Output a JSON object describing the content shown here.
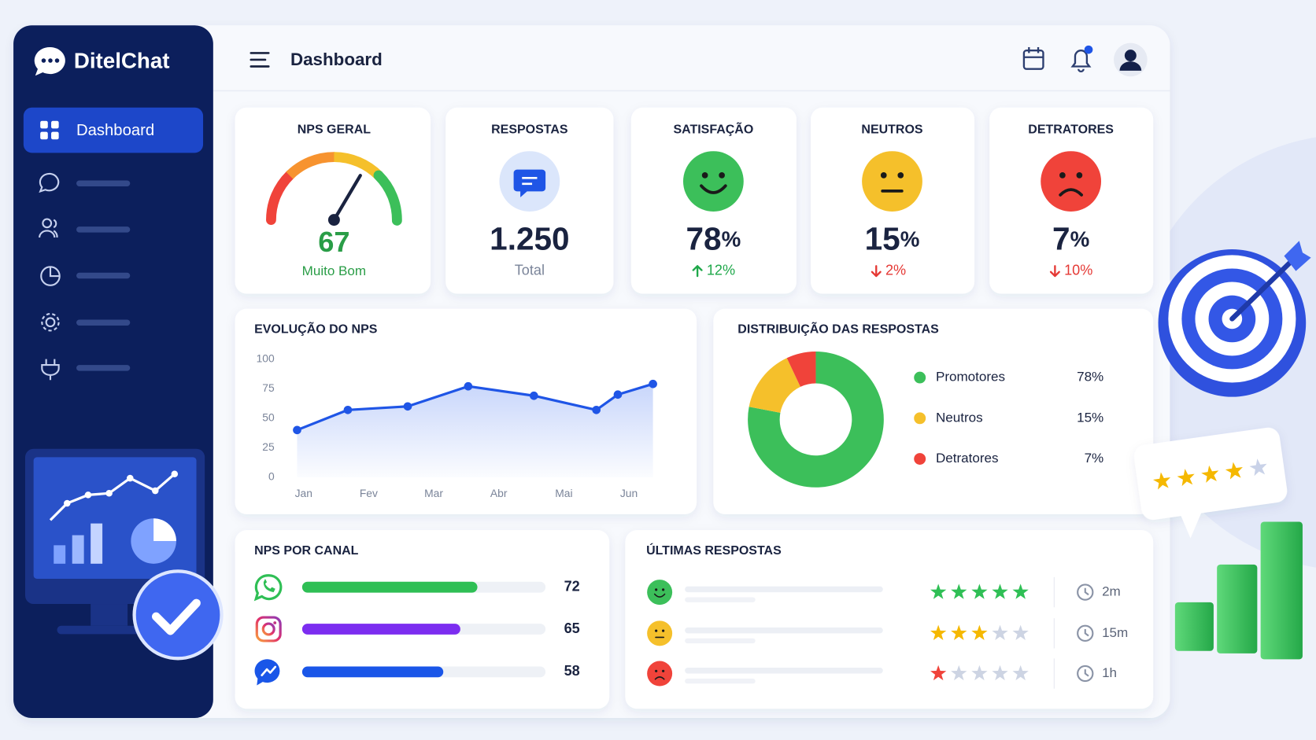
{
  "sidebar": {
    "brand": "DitelChat",
    "active_item": "Dashboard"
  },
  "header": {
    "title": "Dashboard"
  },
  "kpis": [
    {
      "title": "NPS GERAL",
      "value": 67,
      "caption": "Muito Bom",
      "lim": [
        0,
        100
      ]
    },
    {
      "title": "RESPOSTAS",
      "value": "1.250",
      "caption": "Total"
    },
    {
      "title": "SATISFAÇÃO",
      "value": "78",
      "unit": "%",
      "trend": "12%",
      "direction": "up",
      "icon": "happy"
    },
    {
      "title": "NEUTROS",
      "value": "15",
      "unit": "%",
      "trend": "2%",
      "direction": "down",
      "icon": "neutral"
    },
    {
      "title": "DETRATORES",
      "value": "7",
      "unit": "%",
      "trend": "10%",
      "direction": "down",
      "icon": "sad"
    }
  ],
  "chart_data": [
    {
      "type": "line",
      "title": "EVOLUÇÃO DO NPS",
      "x": [
        -0.1,
        0.68,
        1.6,
        2.53,
        3.54,
        4.5,
        4.83,
        5.37
      ],
      "series": [
        {
          "color": "#1f55e6",
          "values": [
            40,
            57,
            60,
            77,
            69,
            57,
            70,
            79
          ]
        }
      ],
      "xlim": [
        -0.1,
        5.37
      ],
      "xticks": [
        {
          "value": 0,
          "label": "Jan"
        },
        {
          "value": 1,
          "label": "Fev"
        },
        {
          "value": 2,
          "label": "Mar"
        },
        {
          "value": 3,
          "label": "Abr"
        },
        {
          "value": 4,
          "label": "Mai"
        },
        {
          "value": 5,
          "label": "Jun"
        }
      ],
      "ylim": [
        0,
        100
      ],
      "yticks": [
        0,
        25,
        50,
        75,
        100
      ],
      "grid": false,
      "area": true
    },
    {
      "type": "pie",
      "title": "DISTRIBUIÇÃO DAS RESPOSTAS",
      "donut": true,
      "categories": [
        "Promotores",
        "Neutros",
        "Detratores"
      ],
      "values": [
        78,
        15,
        7
      ],
      "value_labels": [
        "78%",
        "15%",
        "7%"
      ],
      "colors": [
        "#3cbf5a",
        "#f5c02b",
        "#f0433a"
      ]
    },
    {
      "type": "bar",
      "orientation": "horizontal",
      "title": "NPS POR CANAL",
      "categories": [
        null,
        null,
        null
      ],
      "icons": [
        "whatsapp",
        "instagram",
        "messenger"
      ],
      "values": [
        72,
        65,
        58
      ],
      "colors": [
        "#2fbf55",
        "#7c2df0",
        "#1a56e8"
      ],
      "xlim": [
        0,
        100
      ]
    }
  ],
  "latest_responses": {
    "title": "ÚLTIMAS RESPOSTAS",
    "rating_max": 5,
    "items": [
      {
        "mood": "happy",
        "rating": 5,
        "color": "#2fbf55",
        "time": "2m"
      },
      {
        "mood": "neutral",
        "rating": 3,
        "color": "#f5b800",
        "time": "15m"
      },
      {
        "mood": "sad",
        "rating": 1,
        "color": "#f0433a",
        "time": "1h"
      }
    ]
  }
}
